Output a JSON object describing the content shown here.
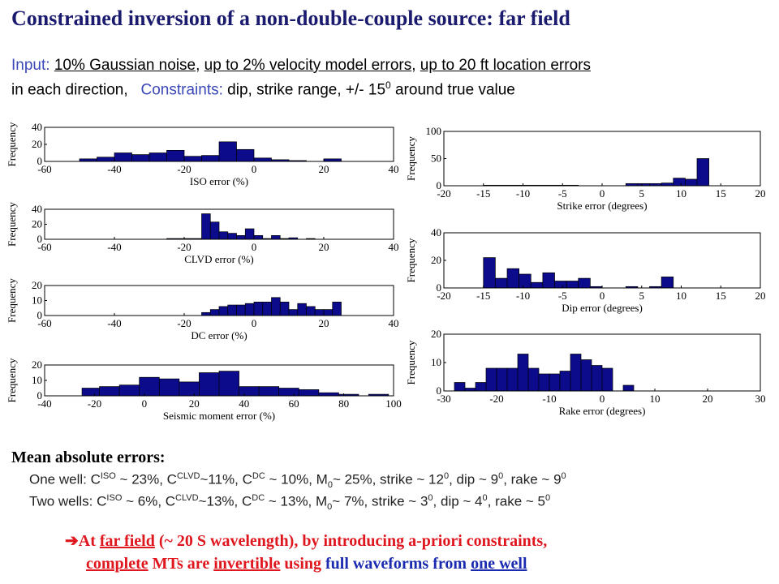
{
  "title": "Constrained inversion of a non-double-couple source: far field",
  "input": {
    "label": "Input:",
    "noise": "10% Gaussian noise",
    "sep1": ",",
    "velocity": "up to 2% velocity model errors",
    "sep2": ",",
    "location": "up to 20 ft location errors",
    "line2_prefix": "in each direction,",
    "constraints_label": "Constraints:",
    "constraints_text": "dip, strike range, +/- 15",
    "constraints_sup": "0",
    "constraints_suffix": "around true value"
  },
  "mean": {
    "title": "Mean absolute errors:",
    "one_well": "One well: C^ISO ~ 23%, C^CLVD~11%, C^DC ~ 10%, M_0~ 25%,  strike ~ 12^0, dip ~ 9^0, rake ~ 9^0",
    "two_wells": "Two wells: C^ISO ~ 6%, C^CLVD~13%, C^DC ~ 13%, M_0~ 7%,  strike ~ 3^0, dip ~ 4^0, rake ~ 5^0"
  },
  "conclusion": {
    "arrow": "➔",
    "line1_a": "At ",
    "line1_b": "far field",
    "line1_c": " (~ 20 S wavelength), by introducing a-priori constraints,",
    "line2_a": "complete",
    "line2_b": " MTs are ",
    "line2_c": "invertible",
    "line2_d": " using ",
    "line2_e": "full waveforms from",
    "line2_f": " ",
    "line2_g": "one well"
  },
  "colors": {
    "bar": "#0b0b8c",
    "bar_edge": "#000000",
    "title": "#1a1a6e",
    "red": "#e0161e",
    "blue": "#1a2bb0"
  },
  "chart_data": [
    {
      "type": "bar",
      "ylabel": "Frequency",
      "xlabel": "ISO error (%)",
      "xlim": [
        -60,
        40
      ],
      "ylim": [
        0,
        40
      ],
      "xticks": [
        -60,
        -40,
        -20,
        0,
        20,
        40
      ],
      "yticks": [
        0,
        20,
        40
      ],
      "bins": [
        [
          -50,
          -45,
          3
        ],
        [
          -45,
          -40,
          5
        ],
        [
          -40,
          -35,
          10
        ],
        [
          -35,
          -30,
          8
        ],
        [
          -30,
          -25,
          10
        ],
        [
          -25,
          -20,
          13
        ],
        [
          -20,
          -15,
          6
        ],
        [
          -15,
          -10,
          7
        ],
        [
          -10,
          -5,
          23
        ],
        [
          -5,
          0,
          14
        ],
        [
          0,
          5,
          4
        ],
        [
          5,
          10,
          2
        ],
        [
          10,
          15,
          1
        ],
        [
          20,
          25,
          3
        ]
      ]
    },
    {
      "type": "bar",
      "ylabel": "Frequency",
      "xlabel": "CLVD error (%)",
      "xlim": [
        -60,
        40
      ],
      "ylim": [
        0,
        40
      ],
      "xticks": [
        -60,
        -40,
        -20,
        0,
        20,
        40
      ],
      "yticks": [
        0,
        20,
        40
      ],
      "bins": [
        [
          -25,
          -20,
          1
        ],
        [
          -20,
          -15,
          1
        ],
        [
          -15,
          -12.5,
          34
        ],
        [
          -12.5,
          -10,
          23
        ],
        [
          -10,
          -7.5,
          10
        ],
        [
          -7.5,
          -5,
          8
        ],
        [
          -5,
          -2.5,
          5
        ],
        [
          -2.5,
          0,
          14
        ],
        [
          0,
          2.5,
          5
        ],
        [
          2.5,
          5,
          1
        ],
        [
          5,
          7.5,
          5
        ],
        [
          7.5,
          10,
          1
        ],
        [
          10,
          12.5,
          2
        ],
        [
          15,
          17.5,
          1
        ]
      ]
    },
    {
      "type": "bar",
      "ylabel": "Frequency",
      "xlabel": "DC error (%)",
      "xlim": [
        -60,
        40
      ],
      "ylim": [
        0,
        20
      ],
      "xticks": [
        -60,
        -40,
        -20,
        0,
        20,
        40
      ],
      "yticks": [
        0,
        10,
        20
      ],
      "bins": [
        [
          -15,
          -12.5,
          2
        ],
        [
          -12.5,
          -10,
          4
        ],
        [
          -10,
          -7.5,
          6
        ],
        [
          -7.5,
          -5,
          7
        ],
        [
          -5,
          -2.5,
          7
        ],
        [
          -2.5,
          0,
          8
        ],
        [
          0,
          2.5,
          9
        ],
        [
          2.5,
          5,
          9
        ],
        [
          5,
          7.5,
          12
        ],
        [
          7.5,
          10,
          9
        ],
        [
          10,
          12.5,
          4
        ],
        [
          12.5,
          15,
          8
        ],
        [
          15,
          17.5,
          6
        ],
        [
          17.5,
          20,
          4
        ],
        [
          20,
          22.5,
          4
        ],
        [
          22.5,
          25,
          9
        ]
      ]
    },
    {
      "type": "bar",
      "ylabel": "Frequency",
      "xlabel": "Seismic moment error (%)",
      "xlim": [
        -40,
        100
      ],
      "ylim": [
        0,
        20
      ],
      "xticks": [
        -40,
        -20,
        0,
        20,
        40,
        60,
        80,
        100
      ],
      "yticks": [
        0,
        10,
        20
      ],
      "bins": [
        [
          -25,
          -18,
          5
        ],
        [
          -18,
          -10,
          6
        ],
        [
          -10,
          -2,
          7
        ],
        [
          -2,
          6,
          12
        ],
        [
          6,
          14,
          11
        ],
        [
          14,
          22,
          9
        ],
        [
          22,
          30,
          15
        ],
        [
          30,
          38,
          16
        ],
        [
          38,
          46,
          6
        ],
        [
          46,
          54,
          6
        ],
        [
          54,
          62,
          5
        ],
        [
          62,
          70,
          4
        ],
        [
          70,
          78,
          2
        ],
        [
          78,
          86,
          1
        ],
        [
          90,
          98,
          1
        ]
      ]
    },
    {
      "type": "bar",
      "ylabel": "Frequency",
      "xlabel": "Strike error (degrees)",
      "xlim": [
        -20,
        20
      ],
      "ylim": [
        0,
        100
      ],
      "xticks": [
        -20,
        -15,
        -10,
        -5,
        0,
        5,
        10,
        15,
        20
      ],
      "yticks": [
        0,
        50,
        100
      ],
      "bins": [
        [
          -15,
          -13.5,
          1
        ],
        [
          -13.5,
          -12,
          1
        ],
        [
          -12,
          -10.5,
          1
        ],
        [
          -10.5,
          -9,
          1
        ],
        [
          -9,
          -7.5,
          1
        ],
        [
          -7.5,
          -6,
          1
        ],
        [
          -6,
          -4.5,
          1
        ],
        [
          -4.5,
          -3,
          1
        ],
        [
          3,
          4.5,
          4
        ],
        [
          4.5,
          6,
          4
        ],
        [
          6,
          7.5,
          4
        ],
        [
          7.5,
          9,
          5
        ],
        [
          9,
          10.5,
          14
        ],
        [
          10.5,
          12,
          12
        ],
        [
          12,
          13.5,
          50
        ]
      ]
    },
    {
      "type": "bar",
      "ylabel": "Frequency",
      "xlabel": "Dip error (degrees)",
      "xlim": [
        -20,
        20
      ],
      "ylim": [
        0,
        40
      ],
      "xticks": [
        -20,
        -15,
        -10,
        -5,
        0,
        5,
        10,
        15,
        20
      ],
      "yticks": [
        0,
        20,
        40
      ],
      "bins": [
        [
          -15,
          -13.5,
          22
        ],
        [
          -13.5,
          -12,
          7
        ],
        [
          -12,
          -10.5,
          14
        ],
        [
          -10.5,
          -9,
          10
        ],
        [
          -9,
          -7.5,
          4
        ],
        [
          -7.5,
          -6,
          11
        ],
        [
          -6,
          -4.5,
          5
        ],
        [
          -4.5,
          -3,
          5
        ],
        [
          -3,
          -1.5,
          7
        ],
        [
          -1.5,
          0,
          1
        ],
        [
          3,
          4.5,
          1
        ],
        [
          6,
          7.5,
          1
        ],
        [
          7.5,
          9,
          8
        ]
      ]
    },
    {
      "type": "bar",
      "ylabel": "Frequency",
      "xlabel": "Rake error (degrees)",
      "xlim": [
        -30,
        30
      ],
      "ylim": [
        0,
        20
      ],
      "xticks": [
        -30,
        -20,
        -10,
        0,
        10,
        20,
        30
      ],
      "yticks": [
        0,
        10,
        20
      ],
      "bins": [
        [
          -28,
          -26,
          3
        ],
        [
          -26,
          -24,
          1
        ],
        [
          -24,
          -22,
          3
        ],
        [
          -22,
          -20,
          8
        ],
        [
          -20,
          -18,
          8
        ],
        [
          -18,
          -16,
          8
        ],
        [
          -16,
          -14,
          13
        ],
        [
          -14,
          -12,
          8
        ],
        [
          -12,
          -10,
          6
        ],
        [
          -10,
          -8,
          6
        ],
        [
          -8,
          -6,
          7
        ],
        [
          -6,
          -4,
          13
        ],
        [
          -4,
          -2,
          11
        ],
        [
          -2,
          0,
          9
        ],
        [
          0,
          2,
          8
        ],
        [
          4,
          6,
          2
        ]
      ]
    }
  ]
}
